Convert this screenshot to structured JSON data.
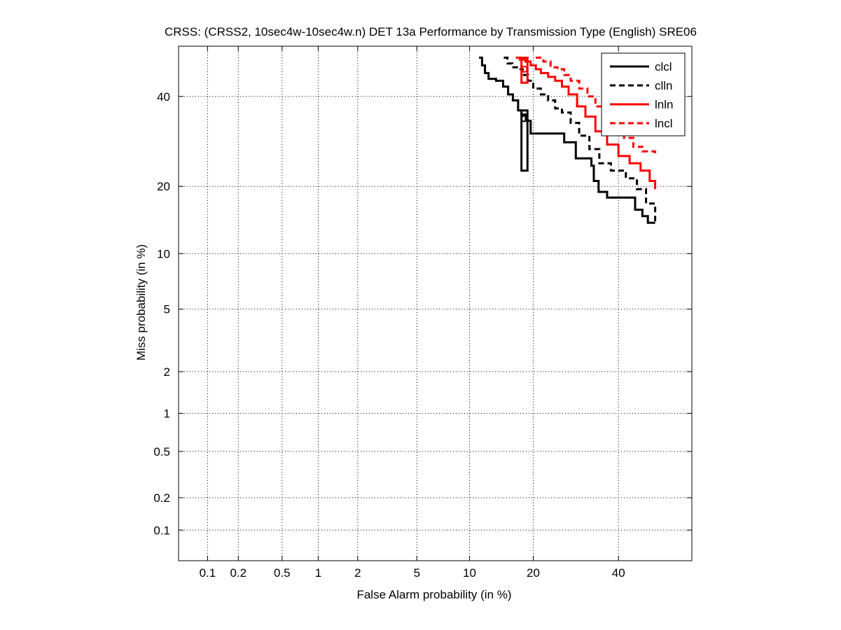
{
  "chart_data": {
    "type": "line",
    "title": "CRSS: (CRSS2, 10sec4w-10sec4w.n) DET 13a Performance by Transmission Type (English) SRE06",
    "xlabel": "False Alarm probability (in %)",
    "ylabel": "Miss probability (in %)",
    "scale": "normal-deviate (probit) on both axes",
    "xlim": [
      0.05,
      60
    ],
    "ylim": [
      0.05,
      53
    ],
    "x_ticks": [
      0.1,
      0.2,
      0.5,
      1,
      2,
      5,
      10,
      20,
      40
    ],
    "x_tick_labels": [
      "0.1",
      "0.2",
      "0.5",
      "1",
      "2",
      "5",
      "10",
      "20",
      "40"
    ],
    "y_ticks": [
      0.1,
      0.2,
      0.5,
      1,
      2,
      5,
      10,
      20,
      40
    ],
    "y_tick_labels": [
      "0.1",
      "0.2",
      "0.5",
      "1",
      "2",
      "5",
      "10",
      "20",
      "40"
    ],
    "grid": true,
    "legend_position": "top-right",
    "series": [
      {
        "name": "clcl",
        "color": "#000000",
        "dash": "solid",
        "x": [
          11.2,
          11.6,
          12.0,
          12.5,
          13.6,
          14.7,
          15.5,
          16.3,
          17.2,
          17.8,
          18.6,
          19.5,
          21.0,
          23.5,
          26.5,
          29.2,
          31.5,
          33.0,
          33.6,
          34.8,
          37.0,
          41.5,
          44.5,
          46.5,
          48.0,
          50.0
        ],
        "y": [
          50.0,
          48.0,
          46.0,
          44.5,
          44.0,
          42.5,
          40.5,
          39.0,
          36.5,
          35.5,
          34.0,
          31.0,
          31.0,
          31.0,
          29.0,
          25.5,
          25.5,
          24.0,
          21.0,
          19.0,
          18.0,
          18.0,
          16.0,
          15.0,
          14.0,
          14.0
        ]
      },
      {
        "name": "clln",
        "color": "#000000",
        "dash": "dashed",
        "x": [
          14.8,
          15.4,
          16.2,
          17.0,
          18.0,
          19.0,
          20.0,
          21.5,
          23.0,
          24.5,
          26.0,
          28.0,
          30.0,
          32.5,
          35.0,
          38.0,
          42.0,
          45.0,
          47.5,
          50.0
        ],
        "y": [
          50.0,
          48.5,
          47.5,
          47.0,
          45.5,
          44.0,
          42.0,
          40.5,
          39.0,
          37.0,
          36.0,
          33.5,
          30.5,
          27.5,
          24.5,
          23.0,
          21.5,
          19.5,
          17.0,
          14.0
        ]
      },
      {
        "name": "lnln",
        "color": "#ff0000",
        "dash": "solid",
        "x": [
          16.8,
          17.5,
          18.5,
          19.5,
          20.5,
          21.5,
          23.0,
          24.5,
          26.0,
          27.5,
          29.5,
          31.5,
          34.0,
          37.0,
          40.0,
          43.0,
          46.0,
          48.5,
          50.0
        ],
        "y": [
          50.0,
          49.5,
          49.0,
          48.0,
          47.0,
          46.0,
          45.0,
          44.0,
          42.5,
          40.5,
          37.5,
          35.0,
          31.5,
          28.5,
          26.0,
          24.5,
          23.0,
          21.0,
          19.5
        ]
      },
      {
        "name": "lncl",
        "color": "#ff0000",
        "dash": "dashed",
        "x": [
          20.5,
          22.0,
          23.5,
          25.0,
          26.5,
          28.0,
          30.0,
          32.0,
          34.0,
          36.5,
          39.0,
          41.5,
          44.0,
          46.5,
          48.5,
          50.0
        ],
        "y": [
          50.0,
          49.0,
          47.5,
          47.0,
          45.5,
          44.0,
          42.0,
          40.0,
          37.5,
          34.5,
          31.5,
          30.0,
          28.0,
          27.0,
          27.0,
          26.0
        ]
      }
    ],
    "operating_point_boxes": [
      {
        "series": "clcl",
        "color": "#000000",
        "x_range": [
          17.8,
          18.9
        ],
        "y_range": [
          23.0,
          36.5
        ]
      },
      {
        "series": "lnln",
        "color": "#ff0000",
        "x_range": [
          17.8,
          18.9
        ],
        "y_range": [
          43.5,
          50.0
        ]
      }
    ],
    "operating_point_markers": [
      {
        "series": "clcl",
        "color": "#000000",
        "shape": "circle",
        "x": 18.3,
        "y": 34.5
      },
      {
        "series": "lnln",
        "color": "#ff0000",
        "shape": "circle",
        "x": 18.3,
        "y": 47.0
      }
    ]
  }
}
